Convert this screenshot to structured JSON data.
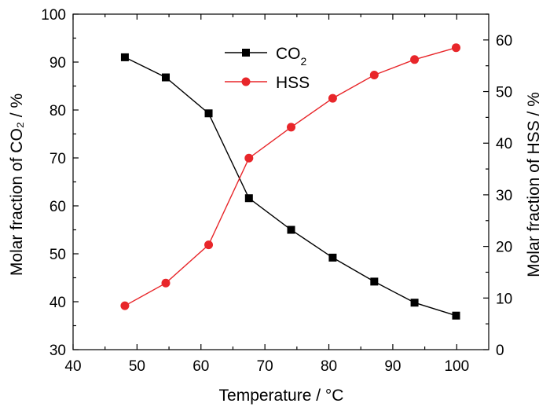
{
  "chart_data": {
    "type": "line",
    "title": "",
    "xlabel": "Temperature / °C",
    "ylabel_left": "Molar fraction of CO₂ / %",
    "ylabel_right": "Molar fraction of HSS / %",
    "xlim": [
      40,
      105
    ],
    "ylim_left": [
      30,
      100
    ],
    "ylim_right": [
      0,
      65
    ],
    "xticks": [
      40,
      50,
      60,
      70,
      80,
      90,
      100
    ],
    "yticks_left": [
      30,
      40,
      50,
      60,
      70,
      80,
      90,
      100
    ],
    "yticks_right": [
      0,
      10,
      20,
      30,
      40,
      50,
      60
    ],
    "legend_position": "top-center",
    "grid": false,
    "series": [
      {
        "name": "CO2",
        "legend_label": "CO",
        "legend_subscript": "2",
        "axis": "left",
        "color": "#000000",
        "marker": "square",
        "x": [
          48.1,
          54.5,
          61.2,
          67.5,
          74.1,
          80.6,
          87.1,
          93.4,
          99.9
        ],
        "y": [
          91.0,
          86.8,
          79.3,
          61.6,
          55.0,
          49.2,
          44.2,
          39.8,
          37.1
        ]
      },
      {
        "name": "HSS",
        "legend_label": "HSS",
        "legend_subscript": "",
        "axis": "right",
        "color": "#e8262a",
        "marker": "circle",
        "x": [
          48.1,
          54.5,
          61.2,
          67.5,
          74.1,
          80.6,
          87.1,
          93.4,
          99.9
        ],
        "y": [
          8.5,
          12.9,
          20.3,
          37.1,
          43.1,
          48.7,
          53.2,
          56.2,
          58.5
        ]
      }
    ]
  }
}
